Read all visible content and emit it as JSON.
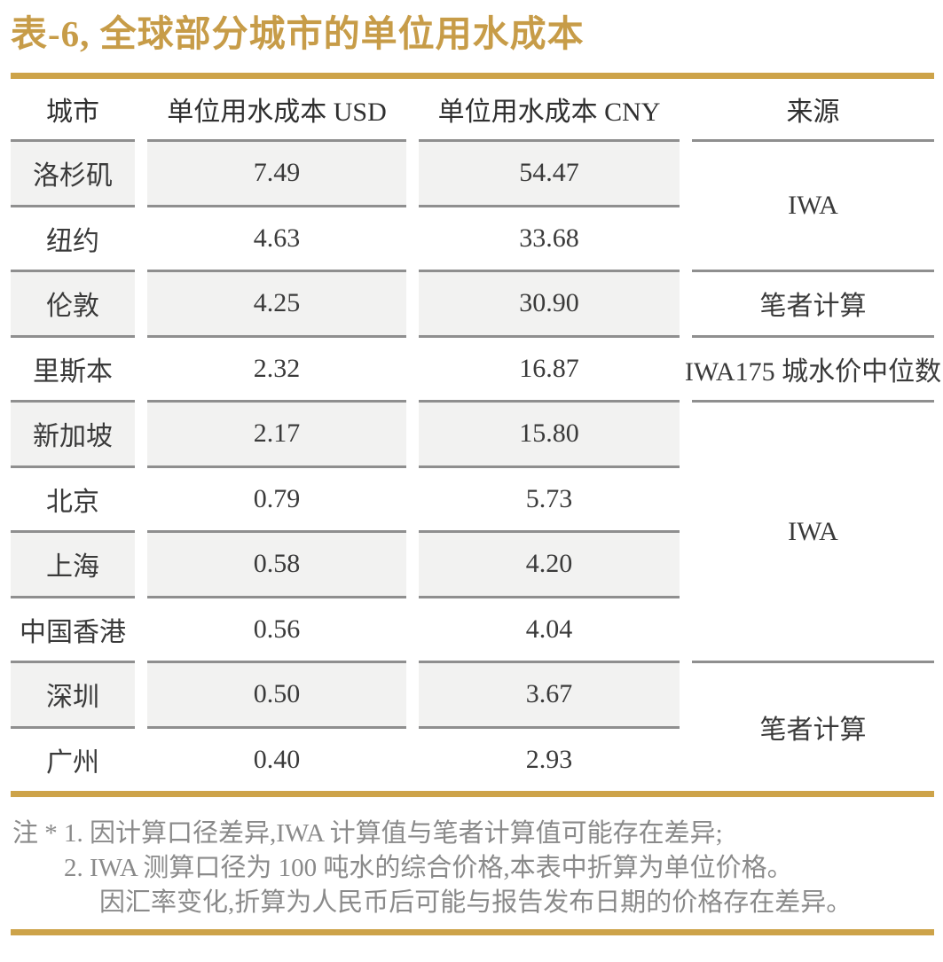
{
  "title": "表-6, 全球部分城市的单位用水成本",
  "colors": {
    "accent_gold": "#cda349",
    "title_gold": "#c79c48",
    "row_stripe": "#f2f2f1",
    "row_line": "#8f8f8f",
    "body_text": "#3a3a3a",
    "note_text": "#8a8a8a"
  },
  "table": {
    "headers": {
      "city": "城市",
      "usd": "单位用水成本 USD",
      "cny": "单位用水成本 CNY",
      "source": "来源"
    },
    "rows": [
      {
        "city": "洛杉矶",
        "usd": "7.49",
        "cny": "54.47"
      },
      {
        "city": "纽约",
        "usd": "4.63",
        "cny": "33.68"
      },
      {
        "city": "伦敦",
        "usd": "4.25",
        "cny": "30.90"
      },
      {
        "city": "里斯本",
        "usd": "2.32",
        "cny": "16.87"
      },
      {
        "city": "新加坡",
        "usd": "2.17",
        "cny": "15.80"
      },
      {
        "city": "北京",
        "usd": "0.79",
        "cny": "5.73"
      },
      {
        "city": "上海",
        "usd": "0.58",
        "cny": "4.20"
      },
      {
        "city": "中国香港",
        "usd": "0.56",
        "cny": "4.04"
      },
      {
        "city": "深圳",
        "usd": "0.50",
        "cny": "3.67"
      },
      {
        "city": "广州",
        "usd": "0.40",
        "cny": "2.93"
      }
    ],
    "sources": [
      {
        "label": "IWA",
        "rows": "1-2"
      },
      {
        "label": "笔者计算",
        "rows": "3"
      },
      {
        "label": "IWA175 城水价中位数",
        "rows": "4"
      },
      {
        "label": "IWA",
        "rows": "5-8"
      },
      {
        "label": "笔者计算",
        "rows": "9-10"
      }
    ]
  },
  "notes": {
    "marker": "注 *",
    "line1": "1. 因计算口径差异,IWA 计算值与笔者计算值可能存在差异;",
    "line2": "2. IWA 测算口径为 100 吨水的综合价格,本表中折算为单位价格。",
    "line3": "因汇率变化,折算为人民币后可能与报告发布日期的价格存在差异。"
  }
}
